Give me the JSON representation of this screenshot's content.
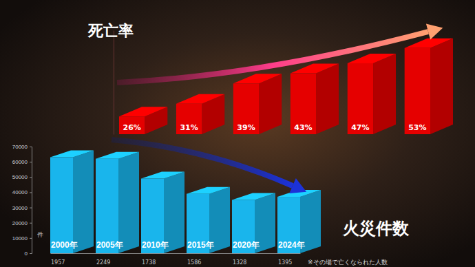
{
  "chart_data": [
    {
      "type": "bar",
      "title": "死亡率",
      "values": [
        26,
        31,
        39,
        43,
        47,
        53
      ],
      "value_labels": [
        "26%",
        "31%",
        "39%",
        "43%",
        "47%",
        "53%"
      ],
      "data_labels": true,
      "color": "#e50000",
      "ylim": [
        19,
        60
      ],
      "tick_labels": false
    },
    {
      "type": "bar",
      "title": "火災件数",
      "categories": [
        "2000年",
        "2005年",
        "2010年",
        "2015年",
        "2020年",
        "2024年"
      ],
      "values": [
        63000,
        62000,
        49000,
        39000,
        35000,
        37000
      ],
      "color": "#19b5ec",
      "ylabel": "件",
      "ylim": [
        0,
        70000
      ],
      "yticks": [
        0,
        10000,
        20000,
        30000,
        40000,
        50000,
        60000,
        70000
      ],
      "deaths": [
        1957,
        2249,
        1738,
        1586,
        1328,
        1395
      ],
      "note": "※その場で亡くなられた人数"
    }
  ]
}
